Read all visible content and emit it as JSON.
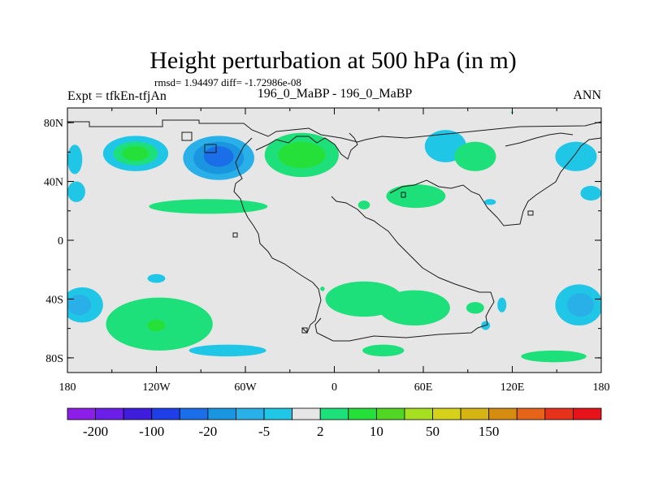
{
  "chart_data": {
    "type": "heatmap",
    "title": "Height perturbation at 500 hPa (in m)",
    "stats_text": "rmsd= 1.94497 diff= -1.72986e-08",
    "left_label": "Expt = tfkEn-tfjAn",
    "center_label": "196_0_MaBP - 196_0_MaBP",
    "right_label": "ANN",
    "projection": "cylindrical equidistant",
    "x_range": [
      -180,
      180
    ],
    "y_range": [
      -90,
      90
    ],
    "x_ticks": [
      {
        "value": -180,
        "label": "180"
      },
      {
        "value": -120,
        "label": "120W"
      },
      {
        "value": -60,
        "label": "60W"
      },
      {
        "value": 0,
        "label": "0"
      },
      {
        "value": 60,
        "label": "60E"
      },
      {
        "value": 120,
        "label": "120E"
      },
      {
        "value": 180,
        "label": "180"
      }
    ],
    "y_ticks": [
      {
        "value": 80,
        "label": "80N"
      },
      {
        "value": 40,
        "label": "40N"
      },
      {
        "value": 0,
        "label": "0"
      },
      {
        "value": -40,
        "label": "40S"
      },
      {
        "value": -80,
        "label": "80S"
      }
    ],
    "colorbar": {
      "colors": [
        "#8d1ee8",
        "#6a1ee8",
        "#3e1edc",
        "#1e3ee8",
        "#1a6ee8",
        "#1a96e0",
        "#2ab0e8",
        "#20c6e6",
        "#e6e6e6",
        "#1ee07a",
        "#26e03a",
        "#52d624",
        "#a6de20",
        "#d6d21a",
        "#d6b414",
        "#d68c10",
        "#e6641a",
        "#e6321a",
        "#e6141a"
      ],
      "labels": [
        {
          "edge": 1,
          "text": "-200"
        },
        {
          "edge": 3,
          "text": "-100"
        },
        {
          "edge": 5,
          "text": "-20"
        },
        {
          "edge": 7,
          "text": "-5"
        },
        {
          "edge": 9,
          "text": "2"
        },
        {
          "edge": 11,
          "text": "10"
        },
        {
          "edge": 13,
          "text": "50"
        },
        {
          "edge": 15,
          "text": "150"
        }
      ]
    },
    "anomaly_regions": [
      {
        "lon": -134,
        "lat": 59,
        "rx": 22,
        "ry": 12,
        "level": 5,
        "color": "#20c6e6"
      },
      {
        "lon": -134,
        "lat": 59,
        "rx": 15,
        "ry": 8,
        "level": 7,
        "color": "#1ee07a"
      },
      {
        "lon": -134,
        "lat": 59,
        "rx": 9,
        "ry": 5,
        "level": 8,
        "color": "#26e03a"
      },
      {
        "lon": -78,
        "lat": 56,
        "rx": 24,
        "ry": 15,
        "level": 4,
        "color": "#2ab0e8"
      },
      {
        "lon": -78,
        "lat": 56,
        "rx": 17,
        "ry": 11,
        "level": 3,
        "color": "#1a96e0"
      },
      {
        "lon": -78,
        "lat": 57,
        "rx": 10,
        "ry": 7,
        "level": 2,
        "color": "#1a6ee8"
      },
      {
        "lon": -22,
        "lat": 58,
        "rx": 25,
        "ry": 15,
        "level": 7,
        "color": "#1ee07a"
      },
      {
        "lon": -22,
        "lat": 58,
        "rx": 16,
        "ry": 9,
        "level": 8,
        "color": "#26e03a"
      },
      {
        "lon": -85,
        "lat": 23,
        "rx": 40,
        "ry": 5,
        "level": 7,
        "color": "#1ee07a"
      },
      {
        "lon": 20,
        "lat": 24,
        "rx": 4,
        "ry": 3,
        "level": 7,
        "color": "#1ee07a"
      },
      {
        "lon": 55,
        "lat": 30,
        "rx": 20,
        "ry": 8,
        "level": 7,
        "color": "#1ee07a"
      },
      {
        "lon": 75,
        "lat": 64,
        "rx": 14,
        "ry": 11,
        "level": 5,
        "color": "#20c6e6"
      },
      {
        "lon": 95,
        "lat": 57,
        "rx": 14,
        "ry": 10,
        "level": 7,
        "color": "#1ee07a"
      },
      {
        "lon": 163,
        "lat": 57,
        "rx": 14,
        "ry": 10,
        "level": 5,
        "color": "#20c6e6"
      },
      {
        "lon": 173,
        "lat": 32,
        "rx": 7,
        "ry": 5,
        "level": 5,
        "color": "#20c6e6"
      },
      {
        "lon": -175,
        "lat": 55,
        "rx": 5,
        "ry": 10,
        "level": 5,
        "color": "#20c6e6"
      },
      {
        "lon": -174,
        "lat": 33,
        "rx": 6,
        "ry": 7,
        "level": 5,
        "color": "#20c6e6"
      },
      {
        "lon": -170,
        "lat": -44,
        "rx": 14,
        "ry": 12,
        "level": 5,
        "color": "#20c6e6"
      },
      {
        "lon": -172,
        "lat": -44,
        "rx": 8,
        "ry": 7,
        "level": 4,
        "color": "#2ab0e8"
      },
      {
        "lon": 165,
        "lat": -44,
        "rx": 16,
        "ry": 14,
        "level": 5,
        "color": "#20c6e6"
      },
      {
        "lon": 166,
        "lat": -44,
        "rx": 9,
        "ry": 8,
        "level": 4,
        "color": "#2ab0e8"
      },
      {
        "lon": -118,
        "lat": -57,
        "rx": 36,
        "ry": 18,
        "level": 7,
        "color": "#1ee07a"
      },
      {
        "lon": -120,
        "lat": -58,
        "rx": 6,
        "ry": 4,
        "level": 8,
        "color": "#26e03a"
      },
      {
        "lon": -120,
        "lat": -26,
        "rx": 6,
        "ry": 3,
        "level": 5,
        "color": "#20c6e6"
      },
      {
        "lon": -72,
        "lat": -75,
        "rx": 26,
        "ry": 4,
        "level": 5,
        "color": "#20c6e6"
      },
      {
        "lon": 20,
        "lat": -40,
        "rx": 26,
        "ry": 12,
        "level": 7,
        "color": "#1ee07a"
      },
      {
        "lon": 54,
        "lat": -46,
        "rx": 24,
        "ry": 12,
        "level": 7,
        "color": "#1ee07a"
      },
      {
        "lon": 95,
        "lat": -46,
        "rx": 6,
        "ry": 4,
        "level": 7,
        "color": "#1ee07a"
      },
      {
        "lon": 33,
        "lat": -75,
        "rx": 14,
        "ry": 4,
        "level": 7,
        "color": "#1ee07a"
      },
      {
        "lon": 148,
        "lat": -79,
        "rx": 22,
        "ry": 4,
        "level": 7,
        "color": "#1ee07a"
      },
      {
        "lon": 113,
        "lat": -44,
        "rx": 3,
        "ry": 5,
        "level": 5,
        "color": "#20c6e6"
      },
      {
        "lon": 102,
        "lat": -58,
        "rx": 3,
        "ry": 3,
        "level": 5,
        "color": "#20c6e6"
      },
      {
        "lon": -8,
        "lat": -33,
        "rx": 1.5,
        "ry": 1.5,
        "level": 7,
        "color": "#1ee07a"
      },
      {
        "lon": 105,
        "lat": 26,
        "rx": 4,
        "ry": 2,
        "level": 5,
        "color": "#20c6e6"
      },
      {
        "lon": 120,
        "lat": 87,
        "rx": 1,
        "ry": 0.5,
        "level": 7,
        "color": "#1ee07a"
      }
    ]
  }
}
